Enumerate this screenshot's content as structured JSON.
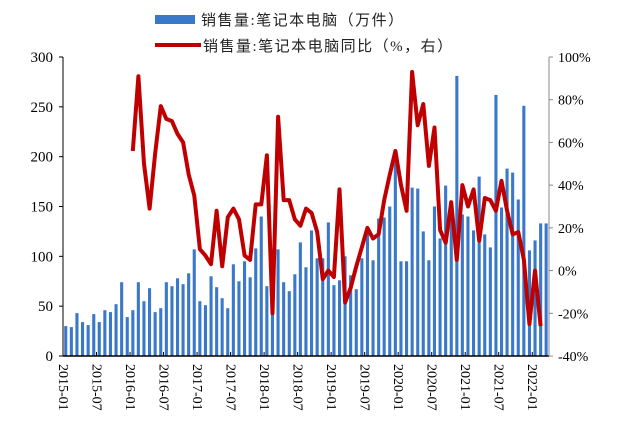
{
  "chart_data": {
    "type": "bar+line",
    "title": "",
    "legend": [
      {
        "name": "销售量:笔记本电脑（万件）",
        "type": "bar",
        "color": "#3a78c9"
      },
      {
        "name": "销售量:笔记本电脑同比（%，右）",
        "type": "line",
        "color": "#c00000"
      }
    ],
    "y_left": {
      "min": 0,
      "max": 300,
      "ticks": [
        "0",
        "50",
        "100",
        "150",
        "200",
        "250",
        "300"
      ]
    },
    "y_right": {
      "min": -40,
      "max": 100,
      "ticks": [
        "-40%",
        "-20%",
        "0%",
        "20%",
        "40%",
        "60%",
        "80%",
        "100%"
      ]
    },
    "x_tick_labels": [
      "2015-01",
      "2015-07",
      "2016-01",
      "2016-07",
      "2017-01",
      "2017-07",
      "2018-01",
      "2018-07",
      "2019-01",
      "2019-07",
      "2020-01",
      "2020-07",
      "2021-01",
      "2021-07",
      "2022-01"
    ],
    "x_start": "2015-01",
    "x_end": "2022-03",
    "series": [
      {
        "name": "销售量:笔记本电脑（万件）",
        "axis": "left",
        "values": [
          30,
          29,
          43,
          34,
          31,
          42,
          34,
          46,
          44,
          52,
          74,
          39,
          46,
          74,
          55,
          68,
          44,
          48,
          74,
          70,
          78,
          72,
          83,
          107,
          55,
          51,
          80,
          69,
          58,
          48,
          92,
          75,
          95,
          79,
          108,
          140,
          70,
          79,
          107,
          74,
          65,
          82,
          114,
          89,
          126,
          98,
          98,
          134,
          71,
          76,
          100,
          81,
          67,
          98,
          130,
          96,
          138,
          139,
          150,
          201,
          95,
          95,
          169,
          168,
          125,
          96,
          150,
          118,
          171,
          145,
          281,
          142,
          140,
          126,
          180,
          122,
          109,
          262,
          149,
          188,
          184,
          157,
          251,
          106,
          116,
          133,
          133
        ],
        "note": "monthly, estimated from bar heights"
      },
      {
        "name": "销售量:笔记本电脑同比（%，右）",
        "axis": "right",
        "start_index": 12,
        "values": [
          56,
          91,
          50,
          29,
          55,
          77,
          71,
          70,
          64,
          60,
          45,
          35,
          10,
          7,
          3,
          28,
          2,
          25,
          29,
          24,
          7,
          5,
          31,
          31,
          54,
          -20,
          72,
          33,
          33,
          24,
          21,
          29,
          27,
          18,
          -4,
          0,
          -3,
          38,
          -15,
          -8,
          2,
          11,
          20,
          15,
          17,
          33,
          45,
          56,
          40,
          28,
          93,
          68,
          78,
          49,
          67,
          19,
          13,
          32,
          5,
          40,
          30,
          38,
          14,
          34,
          33,
          28,
          42,
          28,
          17,
          18,
          5,
          -25,
          0,
          -26
        ],
        "note": "YoY % starting 2016-01, estimated"
      }
    ]
  }
}
